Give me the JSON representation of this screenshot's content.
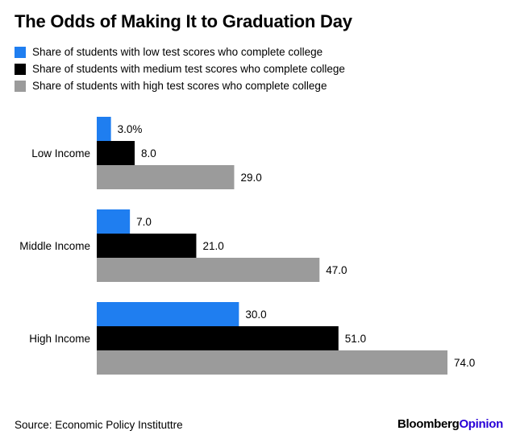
{
  "title": "The Odds of Making It to Graduation Day",
  "source": "Source: Economic Policy Instituttre",
  "brand": {
    "name": "Bloomberg",
    "suffix": "Opinion"
  },
  "chart_data": {
    "type": "bar",
    "orientation": "horizontal",
    "title": "The Odds of Making It to Graduation Day",
    "categories": [
      "Low Income",
      "Middle Income",
      "High Income"
    ],
    "series": [
      {
        "name": "Share of students with low test scores who complete college",
        "color": "#1f7ef0",
        "values": [
          3.0,
          7.0,
          30.0
        ],
        "labels": [
          "3.0%",
          "7.0",
          "30.0"
        ]
      },
      {
        "name": "Share of students with medium test scores who complete college",
        "color": "#000000",
        "values": [
          8.0,
          21.0,
          51.0
        ],
        "labels": [
          "8.0",
          "21.0",
          "51.0"
        ]
      },
      {
        "name": "Share of students with high test scores who complete college",
        "color": "#9b9b9b",
        "values": [
          29.0,
          47.0,
          74.0
        ],
        "labels": [
          "29.0",
          "47.0",
          "74.0"
        ]
      }
    ],
    "xlim": [
      0,
      74
    ],
    "grid": false,
    "legend_position": "top-left"
  }
}
